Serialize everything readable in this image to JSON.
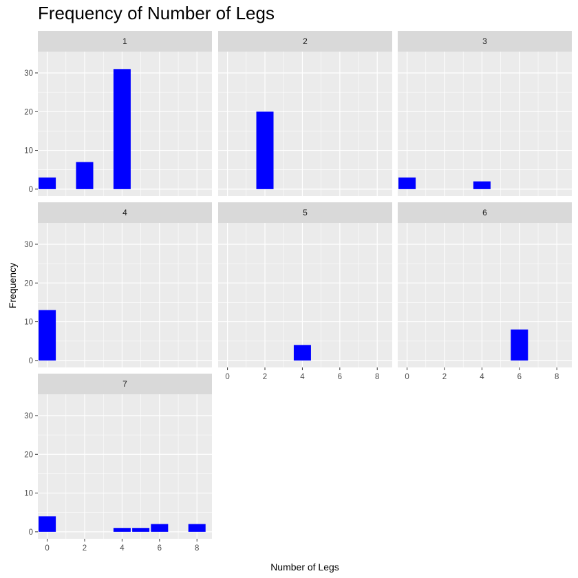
{
  "chart_data": {
    "type": "bar",
    "title": "Frequency of Number of Legs",
    "xlabel": "Number of Legs",
    "ylabel": "Frequency",
    "x_ticks": [
      0,
      2,
      4,
      6,
      8
    ],
    "y_ticks": [
      0,
      10,
      20,
      30
    ],
    "xlim": [
      -0.5,
      8.8
    ],
    "ylim": [
      -1.8,
      35.5
    ],
    "bar_color": "#0000ff",
    "panel_background": "#ebebeb",
    "strip_background": "#d9d9d9",
    "grid": true,
    "facets": [
      {
        "label": "1",
        "bars": [
          {
            "x": 0,
            "y": 3
          },
          {
            "x": 2,
            "y": 7
          },
          {
            "x": 4,
            "y": 31
          }
        ]
      },
      {
        "label": "2",
        "bars": [
          {
            "x": 2,
            "y": 20
          }
        ]
      },
      {
        "label": "3",
        "bars": [
          {
            "x": 0,
            "y": 3
          },
          {
            "x": 4,
            "y": 2
          }
        ]
      },
      {
        "label": "4",
        "bars": [
          {
            "x": 0,
            "y": 13
          }
        ]
      },
      {
        "label": "5",
        "bars": [
          {
            "x": 4,
            "y": 4
          }
        ]
      },
      {
        "label": "6",
        "bars": [
          {
            "x": 6,
            "y": 8
          }
        ]
      },
      {
        "label": "7",
        "bars": [
          {
            "x": 0,
            "y": 4
          },
          {
            "x": 4,
            "y": 1
          },
          {
            "x": 5,
            "y": 1
          },
          {
            "x": 6,
            "y": 2
          },
          {
            "x": 8,
            "y": 2
          }
        ]
      }
    ]
  }
}
